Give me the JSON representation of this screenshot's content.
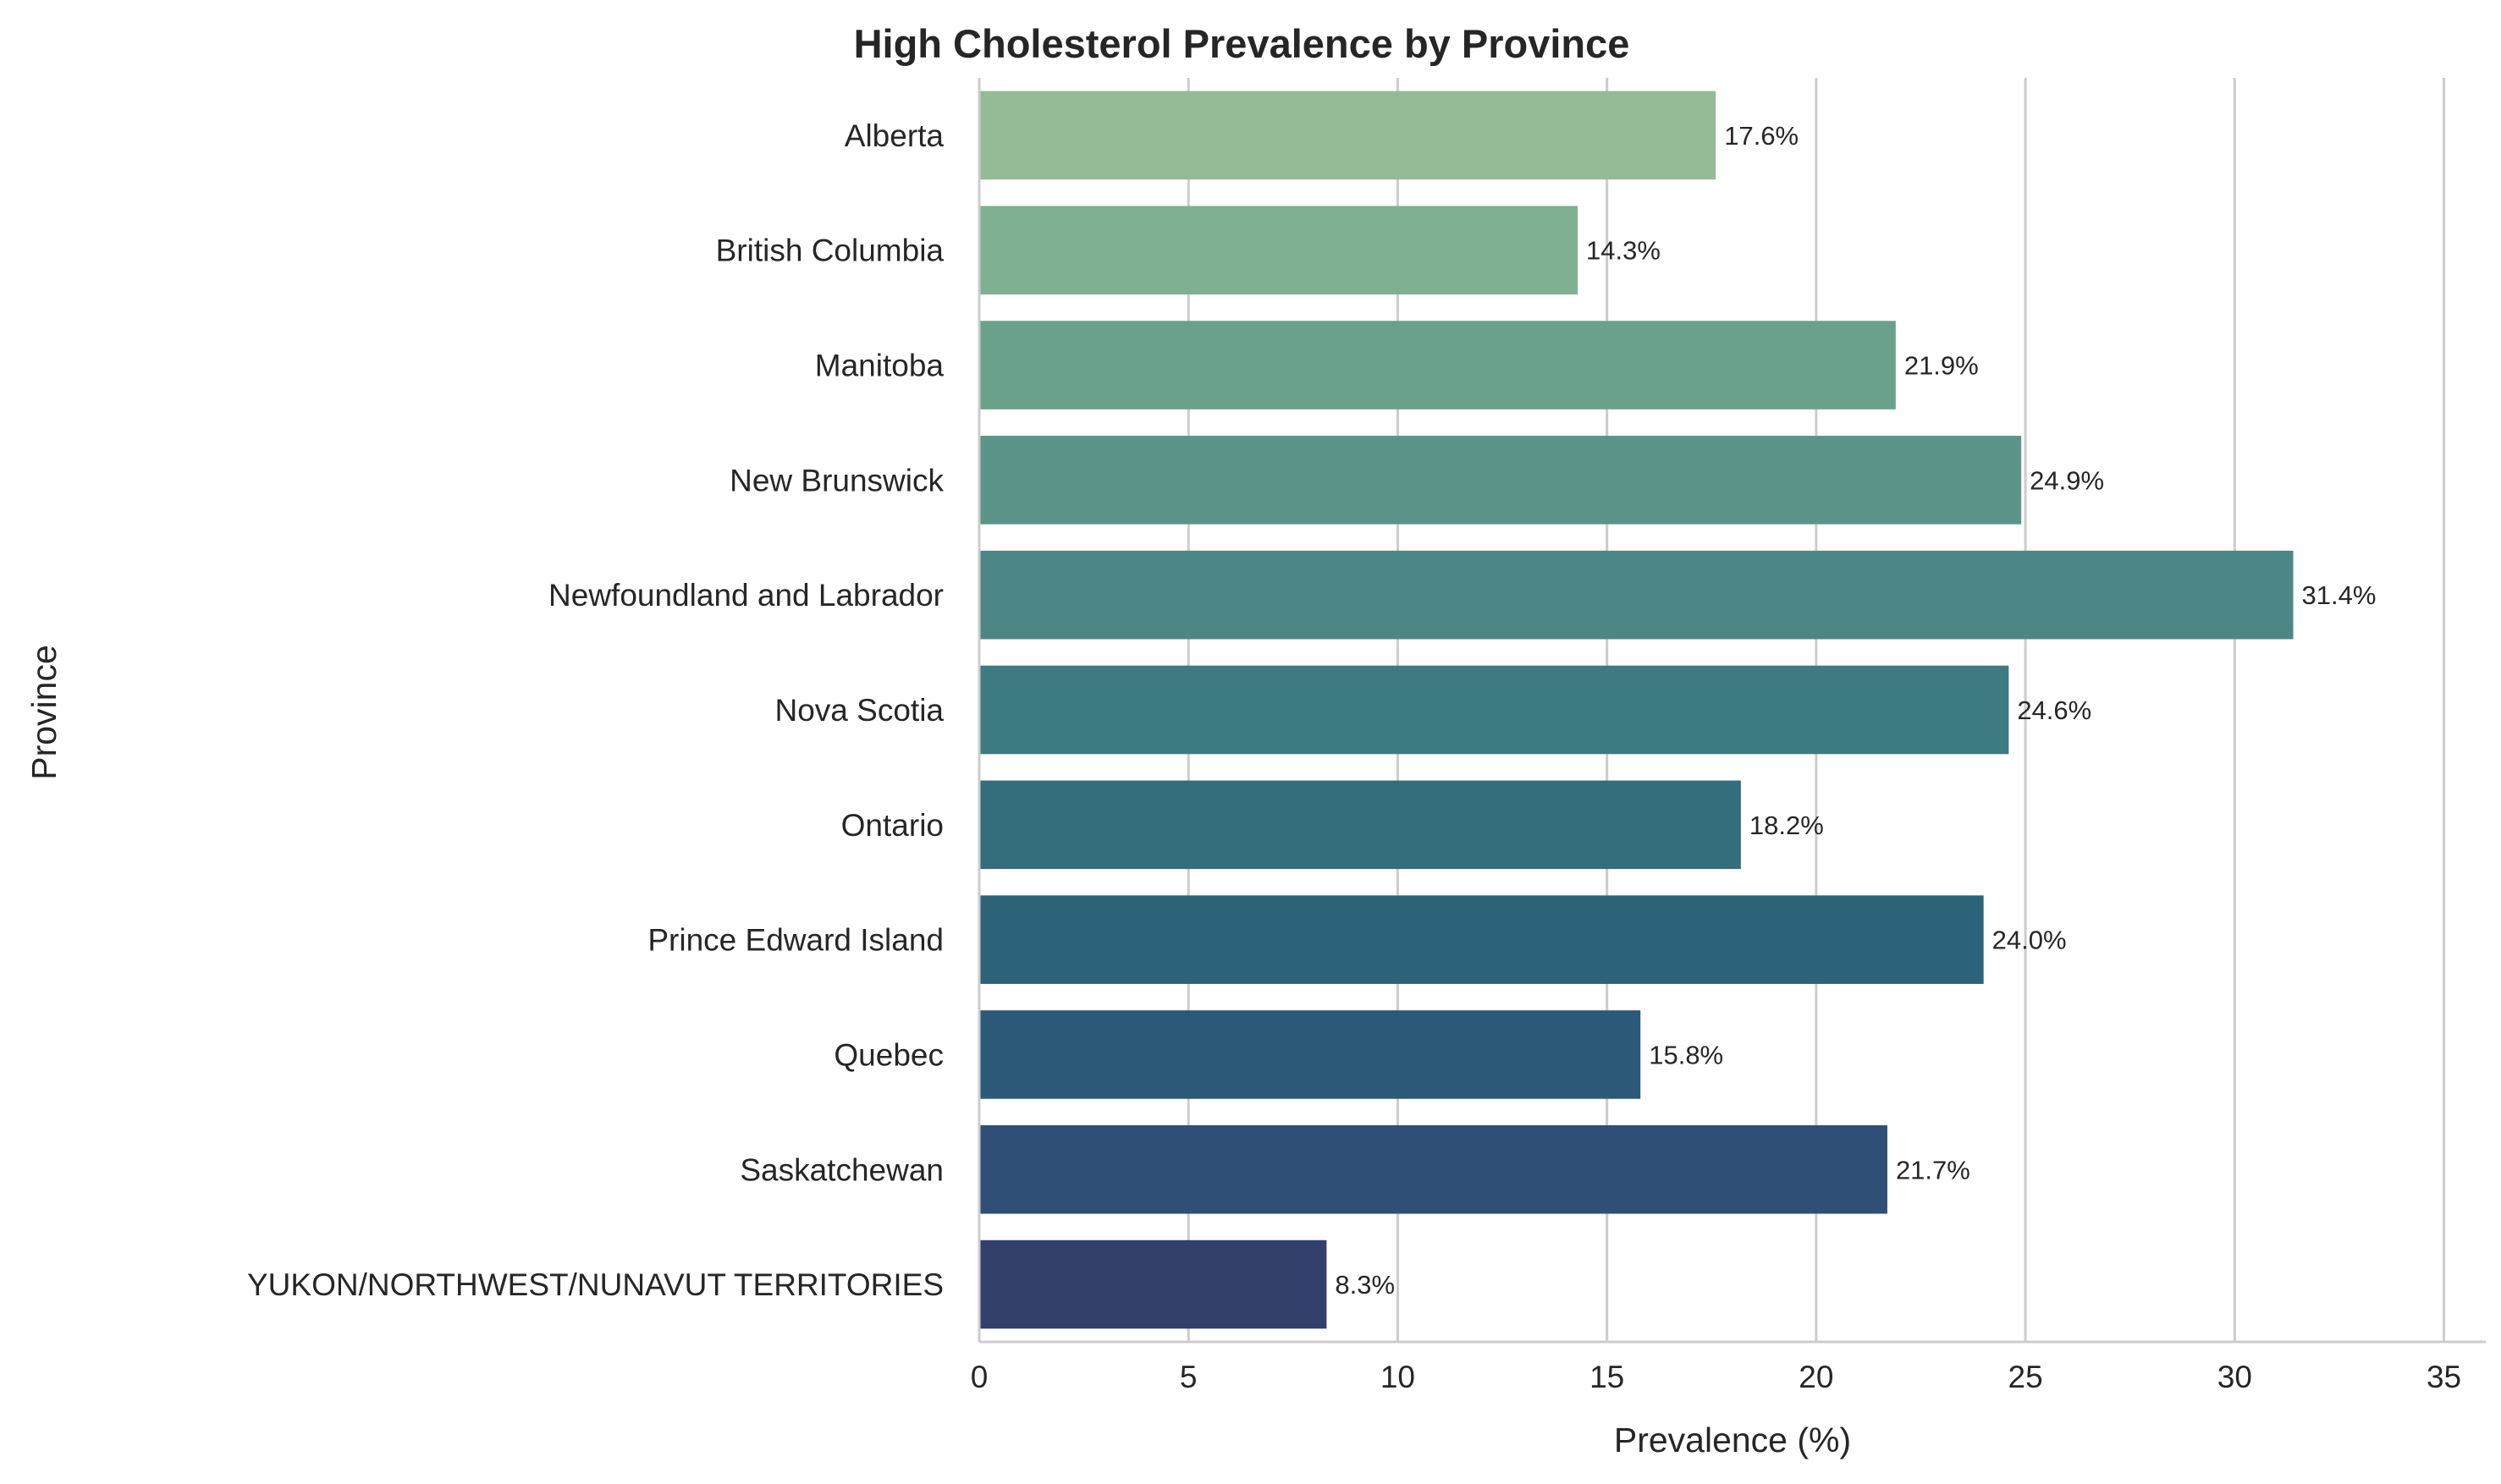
{
  "chart_data": {
    "type": "bar",
    "orientation": "horizontal",
    "title": "High Cholesterol Prevalence by Province",
    "xlabel": "Prevalence (%)",
    "ylabel": "Province",
    "xlim": [
      0,
      36
    ],
    "xticks": [
      0,
      5,
      10,
      15,
      20,
      25,
      30,
      35
    ],
    "grid": true,
    "categories": [
      "Alberta",
      "British Columbia",
      "Manitoba",
      "New Brunswick",
      "Newfoundland and Labrador",
      "Nova Scotia",
      "Ontario",
      "Prince Edward Island",
      "Quebec",
      "Saskatchewan",
      "YUKON/NORTHWEST/NUNAVUT TERRITORIES"
    ],
    "values": [
      17.6,
      14.3,
      21.9,
      24.9,
      31.4,
      24.6,
      18.2,
      24.0,
      15.8,
      21.7,
      8.3
    ],
    "data_labels": [
      "17.6%",
      "14.3%",
      "21.9%",
      "24.9%",
      "31.4%",
      "24.6%",
      "18.2%",
      "24.0%",
      "15.8%",
      "21.7%",
      "8.3%"
    ],
    "colors": [
      "#94bb96",
      "#80b092",
      "#6aa18b",
      "#5b9489",
      "#4c8786",
      "#3d7a82",
      "#346e7d",
      "#2c6379",
      "#2d5979",
      "#2f4f76",
      "#33406c"
    ]
  }
}
